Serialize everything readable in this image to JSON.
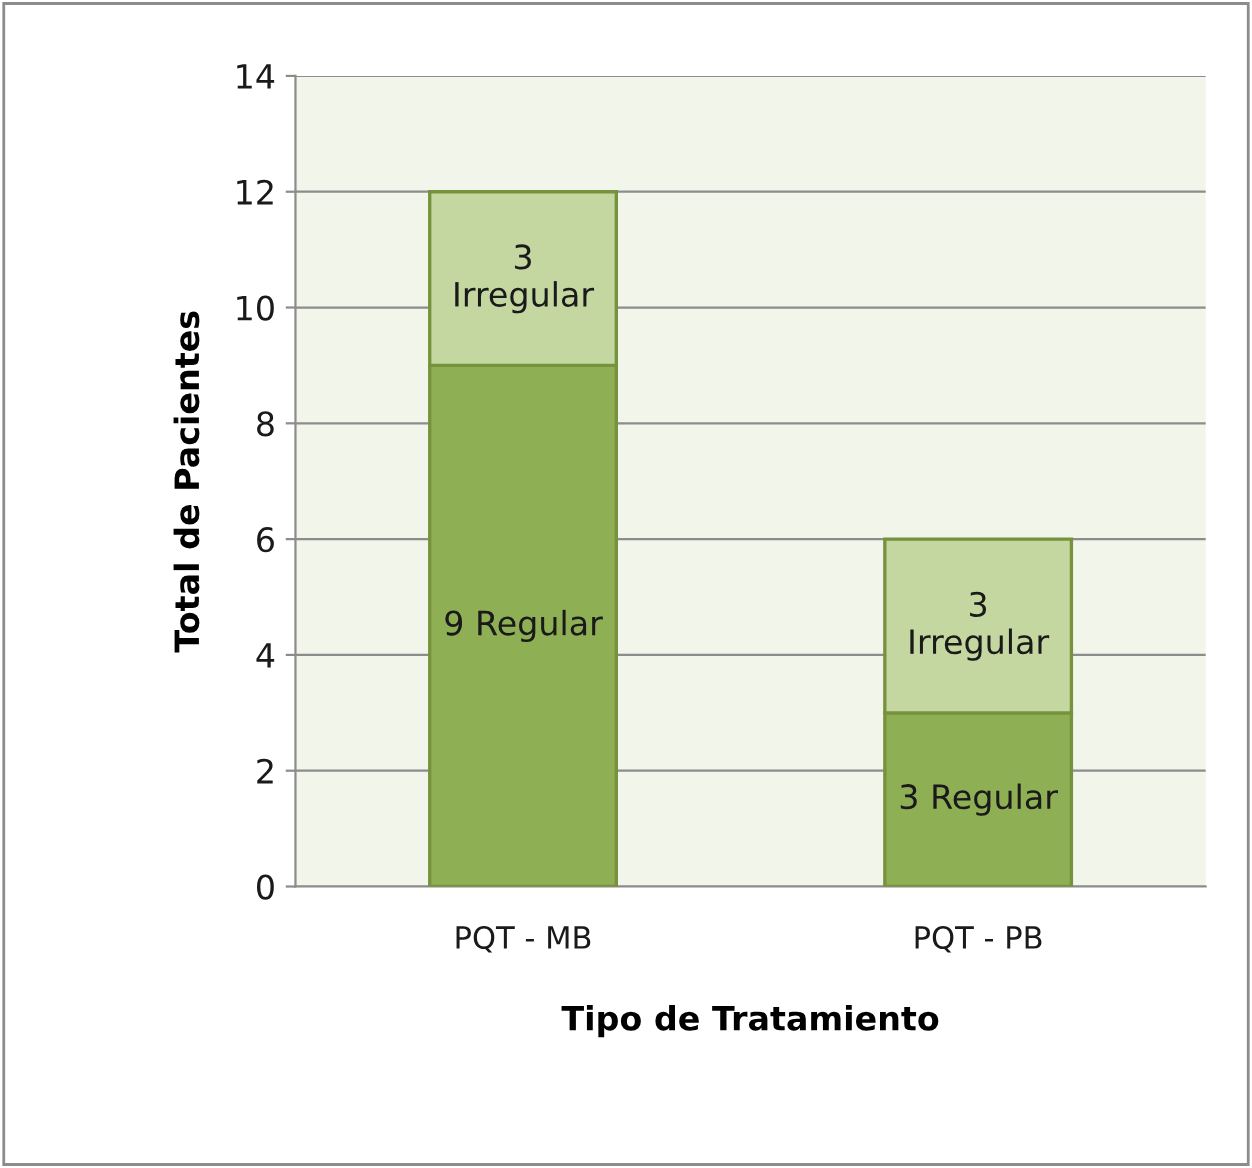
{
  "chart_data": {
    "type": "bar",
    "stacked": true,
    "xlabel": "Tipo de Tratamiento",
    "ylabel": "Total de Pacientes",
    "categories": [
      "PQT - MB",
      "PQT - PB"
    ],
    "series": [
      {
        "color": "#8faf55",
        "values": [
          9,
          3
        ],
        "value_labels": [
          "9 Regular",
          "3 Regular"
        ]
      },
      {
        "color": "#c4d7a0",
        "values": [
          3,
          3
        ],
        "value_labels": [
          "3\nIrregular",
          "3\nIrregular"
        ]
      }
    ],
    "ylim": [
      0,
      14
    ],
    "yticks": [
      0,
      2,
      4,
      6,
      8,
      10,
      12,
      14
    ],
    "grid": "y",
    "legend": false
  }
}
